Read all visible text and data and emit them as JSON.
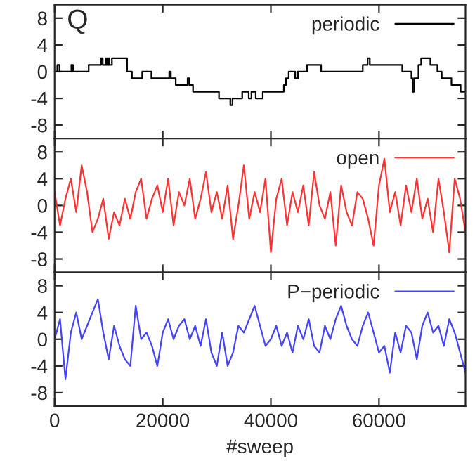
{
  "chart_data": [
    {
      "type": "step",
      "annotations": [
        "Q"
      ],
      "xlim": [
        0,
        76000
      ],
      "ylim": [
        -10,
        10
      ],
      "yticks": [
        -8,
        -4,
        0,
        4,
        8
      ],
      "xticks": [
        0,
        20000,
        40000,
        60000
      ],
      "tick_labels": "y",
      "legend": "top right",
      "grid": false,
      "x": [
        0,
        500,
        900,
        3100,
        3400,
        6300,
        8600,
        8900,
        9500,
        9700,
        10000,
        10100,
        10600,
        13400,
        14300,
        16200,
        17900,
        21200,
        21500,
        22400,
        24600,
        24900,
        25600,
        30400,
        32500,
        32900,
        34700,
        35900,
        36400,
        37200,
        38500,
        42400,
        42800,
        43300,
        44500,
        45000,
        46700,
        49300,
        57000,
        57900,
        58300,
        64300,
        66000,
        66200,
        66500,
        67300,
        67800,
        69500,
        70800,
        71600,
        73400,
        75100,
        76000
      ],
      "series": [
        {
          "name": "periodic",
          "color": "#000000",
          "values": [
            0,
            1,
            0,
            1,
            0,
            1,
            2,
            1,
            2,
            1,
            2,
            1,
            2,
            0,
            -1,
            0,
            -1,
            0,
            -1,
            -2,
            -1,
            -2,
            -3,
            -4,
            -5,
            -4,
            -3,
            -4,
            -3,
            -4,
            -3,
            -2,
            -1,
            0,
            -1,
            0,
            1,
            0,
            1,
            2,
            1,
            0,
            -1,
            -3,
            -1,
            1,
            2,
            1,
            0,
            -1,
            -2,
            -3,
            -3
          ]
        }
      ]
    },
    {
      "type": "line",
      "xlim": [
        0,
        76000
      ],
      "ylim": [
        -10,
        10
      ],
      "yticks": [
        -8,
        -4,
        0,
        4,
        8
      ],
      "xticks": [
        0,
        20000,
        40000,
        60000
      ],
      "tick_labels": "y",
      "legend": "top right",
      "grid": false,
      "x": [
        0,
        1000,
        2000,
        3000,
        4000,
        5000,
        6000,
        7000,
        8000,
        9000,
        10000,
        11000,
        12000,
        13000,
        14000,
        15000,
        16000,
        17000,
        18000,
        19000,
        20000,
        21000,
        22000,
        23000,
        24000,
        25000,
        26000,
        27000,
        28000,
        29000,
        30000,
        31000,
        32000,
        33000,
        34000,
        35000,
        36000,
        37000,
        38000,
        39000,
        40000,
        41000,
        42000,
        43000,
        44000,
        45000,
        46000,
        47000,
        48000,
        49000,
        50000,
        51000,
        52000,
        53000,
        54000,
        55000,
        56000,
        57000,
        58000,
        59000,
        60000,
        61000,
        62000,
        63000,
        64000,
        65000,
        66000,
        67000,
        68000,
        69000,
        70000,
        71000,
        72000,
        73000,
        74000,
        75000,
        76000
      ],
      "series": [
        {
          "name": "open",
          "color": "#ff3333",
          "values": [
            2,
            -3,
            1,
            4,
            -1,
            6,
            2,
            -4,
            -2,
            1,
            -5,
            -1,
            -3,
            1,
            -2,
            2,
            4,
            -2,
            1,
            3,
            -1,
            4,
            -3,
            2,
            0,
            4,
            -2,
            1,
            5,
            -1,
            2,
            -2,
            3,
            -5,
            0,
            6,
            -2,
            2,
            -1,
            4,
            -7,
            1,
            4,
            -3,
            2,
            -1,
            3,
            -3,
            5,
            0,
            -2,
            2,
            -6,
            3,
            -1,
            -3,
            2,
            1,
            -2,
            -6,
            3,
            7,
            -1,
            2,
            -3,
            3,
            -1,
            4,
            -2,
            1,
            -4,
            4,
            -1,
            -7,
            4,
            1,
            -4
          ]
        }
      ]
    },
    {
      "type": "line",
      "xlabel": "#sweep",
      "xlim": [
        0,
        76000
      ],
      "ylim": [
        -10,
        10
      ],
      "yticks": [
        -8,
        -4,
        0,
        4,
        8
      ],
      "xticks": [
        0,
        20000,
        40000,
        60000
      ],
      "legend": "top right",
      "grid": false,
      "x": [
        0,
        1000,
        2000,
        3000,
        4000,
        5000,
        6000,
        7000,
        8000,
        9000,
        10000,
        11000,
        12000,
        13000,
        14000,
        15000,
        16000,
        17000,
        18000,
        19000,
        20000,
        21000,
        22000,
        23000,
        24000,
        25000,
        26000,
        27000,
        28000,
        29000,
        30000,
        31000,
        32000,
        33000,
        34000,
        35000,
        36000,
        37000,
        38000,
        39000,
        40000,
        41000,
        42000,
        43000,
        44000,
        45000,
        46000,
        47000,
        48000,
        49000,
        50000,
        51000,
        52000,
        53000,
        54000,
        55000,
        56000,
        57000,
        58000,
        59000,
        60000,
        61000,
        62000,
        63000,
        64000,
        65000,
        66000,
        67000,
        68000,
        69000,
        70000,
        71000,
        72000,
        73000,
        74000,
        75000,
        76000
      ],
      "series": [
        {
          "name": "P−periodic",
          "color": "#4444ff",
          "values": [
            0,
            3,
            -6,
            1,
            4,
            0,
            2,
            4,
            6,
            1,
            -3,
            2,
            -1,
            -3,
            -4,
            5,
            0,
            1,
            -1,
            -4,
            1,
            3,
            0,
            2,
            3,
            0,
            2,
            -1,
            3,
            -2,
            -4,
            1,
            -4,
            -2,
            2,
            1,
            3,
            5,
            2,
            -1,
            0,
            2,
            -1,
            1,
            -2,
            2,
            0,
            3,
            -1,
            -2,
            2,
            0,
            3,
            5,
            2,
            0,
            -1,
            2,
            4,
            1,
            -2,
            -1,
            -5,
            1,
            -2,
            2,
            1,
            -3,
            2,
            4,
            1,
            2,
            -1,
            3,
            1,
            -2,
            -5
          ]
        }
      ]
    }
  ]
}
